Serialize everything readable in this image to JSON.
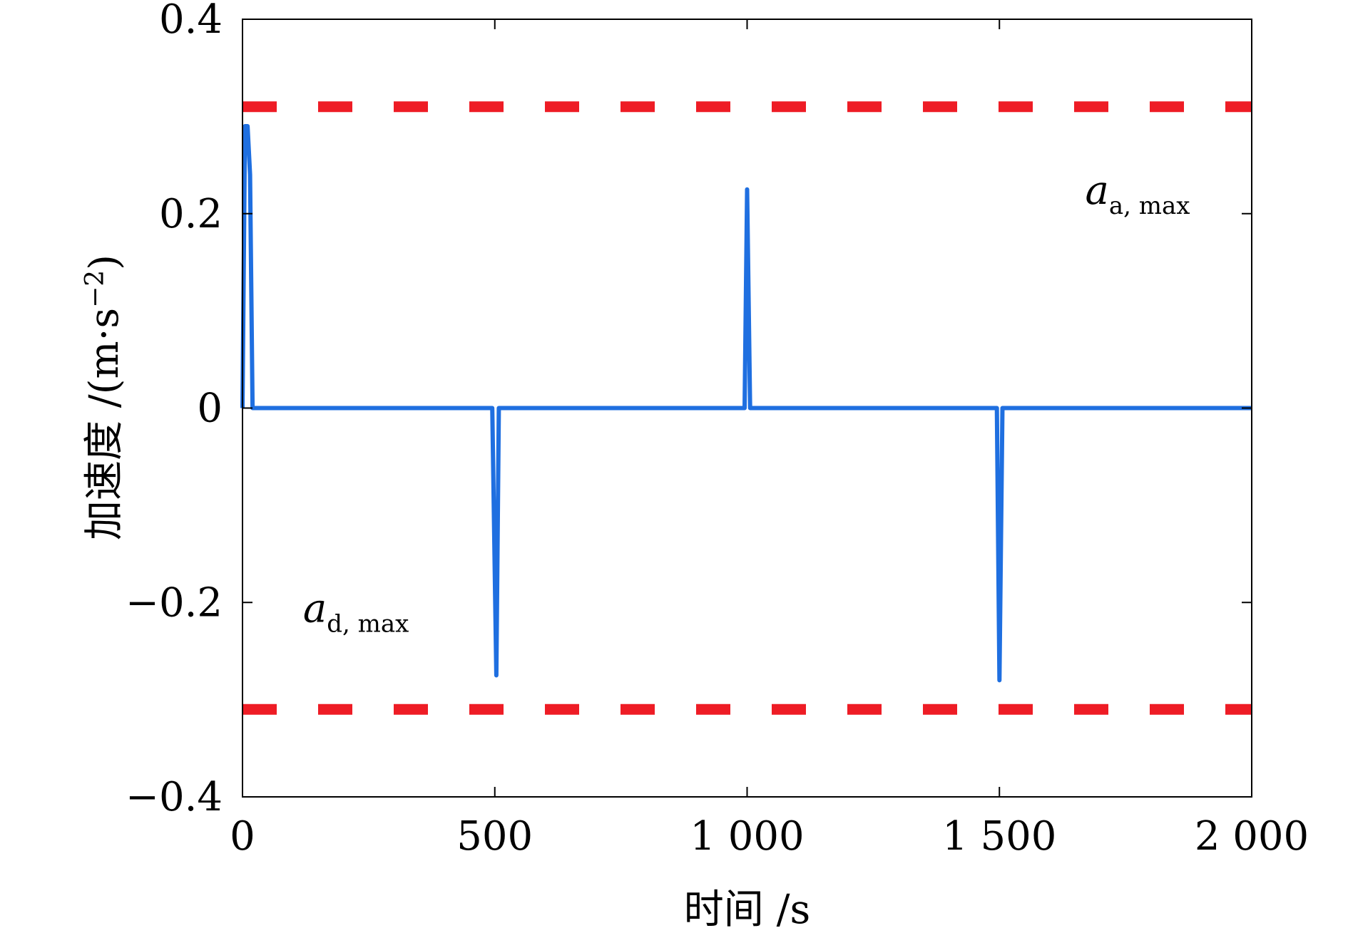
{
  "chart_data": {
    "type": "line",
    "title": "",
    "xlabel": "时间 /s",
    "ylabel_text": "加速度 /(m·s",
    "ylabel_sup": "−2",
    "ylabel_close": ")",
    "xlim": [
      0,
      2000
    ],
    "ylim": [
      -0.4,
      0.4
    ],
    "x_ticks": [
      0,
      500,
      1000,
      1500,
      2000
    ],
    "x_tick_labels": [
      "0",
      "500",
      "1 000",
      "1 500",
      "2 000"
    ],
    "y_ticks": [
      -0.4,
      -0.2,
      0,
      0.2,
      0.4
    ],
    "y_tick_labels": [
      "−0.4",
      "−0.2",
      "0",
      "0.2",
      "0.4"
    ],
    "grid": false,
    "series": [
      {
        "color": "#1f6fe0",
        "x": [
          0,
          5,
          10,
          15,
          20,
          2000
        ],
        "y": [
          0,
          0.29,
          0.29,
          0.24,
          0,
          0
        ],
        "spikes": [
          {
            "x_start": 495,
            "x_peak": 503,
            "x_end": 508,
            "y": -0.275
          },
          {
            "x_start": 995,
            "x_peak": 1000,
            "x_end": 1006,
            "y": 0.225
          },
          {
            "x_start": 1495,
            "x_peak": 1500,
            "x_end": 1506,
            "y": -0.28
          }
        ]
      }
    ],
    "limit_lines": [
      {
        "y": 0.31,
        "color": "#ee1c25",
        "style": "dashed"
      },
      {
        "y": -0.31,
        "color": "#ee1c25",
        "style": "dashed"
      }
    ],
    "annotations": [
      {
        "main": "a",
        "sub": "a, max",
        "x": 1670,
        "y": 0.21
      },
      {
        "main": "a",
        "sub": "d, max",
        "x": 120,
        "y": -0.22
      }
    ]
  }
}
